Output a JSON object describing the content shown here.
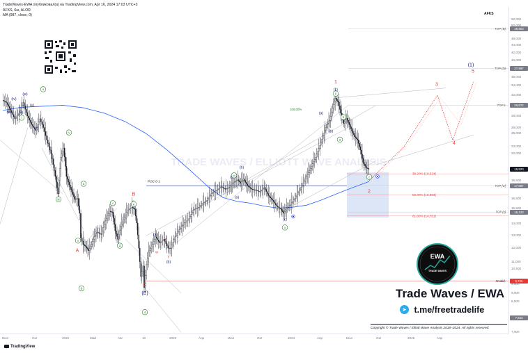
{
  "header": {
    "published": "TradeWaves-EWA опубликовал(а) на TradingView.com, Apr 16, 2024 17:03 UTC+3",
    "symbol_line": "AFKS, 6м, ALOR",
    "ma_line": "MA (987, close, 0)"
  },
  "symbol_tag": "AFKS",
  "currency": "RUB",
  "footer": {
    "logo_text": "TradingView"
  },
  "brand": {
    "title": "Trade Waves / EWA",
    "telegram": "t.me/freetradelife",
    "copyright": "Copyright © Trade Waves / Elliott Wave Analysis 2018–2024. All rights reserved.",
    "logo_text": "EWA",
    "logo_sub": "TRADE WAVES",
    "watermark": "TRADE WAVES / ELLIOTT WAVE ANALYSIS"
  },
  "colors": {
    "candles": "#131722",
    "ma": "#2962ff",
    "wave_red": "#e53935",
    "wave_green": "#2e7d32",
    "wave_navy": "#1a237e",
    "target_zone": "#d6e2f5",
    "invalid_line": "#e57373"
  },
  "chart_data": {
    "type": "candlestick",
    "ylim": [
      7000,
      52000
    ],
    "y_ticks": [
      {
        "label": "52,000",
        "value": 52000
      },
      {
        "label": "50,000",
        "value": 50000
      },
      {
        "label": "46,000",
        "value": 46000
      },
      {
        "label": "44,000",
        "value": 44000
      },
      {
        "label": "42,000",
        "value": 42000
      },
      {
        "label": "40,000",
        "value": 40000
      },
      {
        "label": "38,000",
        "value": 38000
      },
      {
        "label": "36,000",
        "value": 36000
      },
      {
        "label": "34,000",
        "value": 34000
      },
      {
        "label": "32,000",
        "value": 32000
      },
      {
        "label": "30,000",
        "value": 30000
      },
      {
        "label": "28,000",
        "value": 28000
      },
      {
        "label": "26,000",
        "value": 26000
      },
      {
        "label": "25,000",
        "value": 25000
      },
      {
        "label": "23,000",
        "value": 23000
      },
      {
        "label": "22,000",
        "value": 22000
      },
      {
        "label": "20,000",
        "value": 20000
      },
      {
        "label": "18,500",
        "value": 18500
      },
      {
        "label": "16,500",
        "value": 16500
      },
      {
        "label": "15,500",
        "value": 15500
      },
      {
        "label": "14,000",
        "value": 14000
      },
      {
        "label": "13,000",
        "value": 13000
      },
      {
        "label": "12,000",
        "value": 12000
      },
      {
        "label": "11,000",
        "value": 11000
      },
      {
        "label": "10,500",
        "value": 10500
      },
      {
        "label": "9,500",
        "value": 9500
      },
      {
        "label": "9,000",
        "value": 9000
      },
      {
        "label": "8,500",
        "value": 8500
      },
      {
        "label": "7,700",
        "value": 7700
      },
      {
        "label": "7,000",
        "value": 7000
      }
    ],
    "price_badges": [
      {
        "label": "48,963",
        "value": 48963,
        "color": "#787b86"
      },
      {
        "label": "37,987",
        "value": 37987,
        "color": "#787b86"
      },
      {
        "label": "29,972",
        "value": 29972,
        "color": "#787b86"
      },
      {
        "label": "19,920",
        "value": 19920,
        "color": "#131722"
      },
      {
        "label": "17,887",
        "value": 17887,
        "color": "#787b86"
      },
      {
        "label": "15,123",
        "value": 15123,
        "color": "#787b86"
      },
      {
        "label": "9,726",
        "value": 9726,
        "color": "#e53935"
      },
      {
        "label": "7,663",
        "value": 7663,
        "color": "#787b86"
      }
    ],
    "x_ticks": [
      {
        "label": "Июл",
        "x": 6
      },
      {
        "label": "Окт",
        "x": 49
      },
      {
        "label": "2022",
        "x": 92
      },
      {
        "label": "Май",
        "x": 132
      },
      {
        "label": "Авг",
        "x": 172
      },
      {
        "label": "10",
        "x": 207
      },
      {
        "label": "2023",
        "x": 246
      },
      {
        "label": "Апр",
        "x": 288
      },
      {
        "label": "Июл",
        "x": 330
      },
      {
        "label": "Окт",
        "x": 372
      },
      {
        "label": "2024",
        "x": 416
      },
      {
        "label": "Апр",
        "x": 458
      },
      {
        "label": "Июл",
        "x": 500
      },
      {
        "label": "Окт",
        "x": 543
      },
      {
        "label": "2025",
        "x": 588
      },
      {
        "label": "Апр",
        "x": 630
      }
    ],
    "price_path": [
      [
        4,
        31000
      ],
      [
        10,
        30500
      ],
      [
        16,
        29000
      ],
      [
        22,
        27500
      ],
      [
        28,
        28500
      ],
      [
        34,
        30500
      ],
      [
        40,
        28000
      ],
      [
        46,
        26500
      ],
      [
        52,
        25500
      ],
      [
        58,
        27500
      ],
      [
        63,
        26000
      ],
      [
        68,
        24000
      ],
      [
        74,
        22000
      ],
      [
        80,
        19000
      ],
      [
        84,
        17000
      ],
      [
        88,
        21500
      ],
      [
        92,
        22800
      ],
      [
        96,
        19000
      ],
      [
        100,
        18000
      ],
      [
        104,
        17200
      ],
      [
        108,
        16400
      ],
      [
        112,
        16500
      ],
      [
        115,
        15000
      ],
      [
        117,
        12800
      ],
      [
        120,
        12300
      ],
      [
        124,
        12100
      ],
      [
        128,
        11800
      ],
      [
        132,
        12300
      ],
      [
        136,
        12900
      ],
      [
        140,
        13300
      ],
      [
        146,
        13100
      ],
      [
        152,
        14300
      ],
      [
        158,
        15200
      ],
      [
        162,
        15100
      ],
      [
        166,
        13400
      ],
      [
        170,
        12700
      ],
      [
        174,
        13800
      ],
      [
        178,
        14400
      ],
      [
        184,
        15300
      ],
      [
        190,
        15600
      ],
      [
        194,
        15400
      ],
      [
        197,
        14100
      ],
      [
        200,
        12000
      ],
      [
        203,
        10000
      ],
      [
        206,
        10700
      ],
      [
        208,
        9300
      ],
      [
        211,
        10800
      ],
      [
        214,
        11700
      ],
      [
        218,
        12100
      ],
      [
        224,
        12900
      ],
      [
        230,
        12400
      ],
      [
        236,
        12700
      ],
      [
        242,
        12000
      ],
      [
        246,
        12000
      ],
      [
        252,
        12900
      ],
      [
        258,
        13500
      ],
      [
        264,
        14000
      ],
      [
        272,
        14500
      ],
      [
        278,
        15300
      ],
      [
        286,
        15600
      ],
      [
        292,
        16000
      ],
      [
        298,
        16300
      ],
      [
        304,
        17000
      ],
      [
        312,
        17400
      ],
      [
        318,
        17800
      ],
      [
        324,
        17500
      ],
      [
        330,
        17700
      ],
      [
        336,
        18300
      ],
      [
        342,
        18600
      ],
      [
        346,
        18200
      ],
      [
        350,
        18700
      ],
      [
        356,
        17900
      ],
      [
        362,
        17500
      ],
      [
        368,
        17400
      ],
      [
        374,
        17200
      ],
      [
        380,
        17700
      ],
      [
        386,
        16800
      ],
      [
        392,
        16300
      ],
      [
        398,
        15700
      ],
      [
        404,
        15400
      ],
      [
        408,
        15000
      ],
      [
        412,
        15500
      ],
      [
        418,
        15900
      ],
      [
        424,
        16500
      ],
      [
        430,
        17300
      ],
      [
        436,
        18200
      ],
      [
        442,
        19200
      ],
      [
        448,
        20300
      ],
      [
        454,
        21500
      ],
      [
        460,
        23200
      ],
      [
        466,
        25100
      ],
      [
        470,
        26500
      ],
      [
        474,
        27200
      ],
      [
        478,
        29500
      ],
      [
        482,
        31400
      ],
      [
        486,
        30600
      ],
      [
        490,
        28500
      ],
      [
        494,
        26700
      ],
      [
        498,
        27600
      ],
      [
        502,
        26500
      ],
      [
        506,
        25400
      ],
      [
        510,
        24500
      ],
      [
        514,
        24000
      ],
      [
        518,
        22500
      ],
      [
        522,
        20800
      ],
      [
        526,
        20100
      ],
      [
        530,
        19900
      ]
    ],
    "ma_path": [
      [
        4,
        29000
      ],
      [
        30,
        29600
      ],
      [
        60,
        29800
      ],
      [
        90,
        30000
      ],
      [
        120,
        29500
      ],
      [
        150,
        28500
      ],
      [
        180,
        27000
      ],
      [
        210,
        25000
      ],
      [
        240,
        22500
      ],
      [
        270,
        20000
      ],
      [
        300,
        17700
      ],
      [
        320,
        16600
      ],
      [
        340,
        16200
      ],
      [
        360,
        16000
      ],
      [
        380,
        15700
      ],
      [
        400,
        15500
      ],
      [
        420,
        15600
      ],
      [
        440,
        15800
      ],
      [
        460,
        16300
      ],
      [
        480,
        16900
      ],
      [
        500,
        17500
      ],
      [
        520,
        18100
      ],
      [
        530,
        18400
      ]
    ],
    "projection_path": [
      [
        530,
        18500
      ],
      [
        580,
        23000
      ],
      [
        628,
        32000
      ],
      [
        650,
        24000
      ],
      [
        680,
        35000
      ]
    ],
    "target_zone": {
      "x0": 498,
      "x1": 558,
      "y_top": 19500,
      "y_bottom": 14600
    },
    "fib_levels": [
      {
        "label": "38.20% (19,324)",
        "value": 19324,
        "color": "#e53935"
      },
      {
        "label": "50.00% (16,883)",
        "value": 16883,
        "color": "#e53935"
      },
      {
        "label": "61.80% (14,751)",
        "value": 14751,
        "color": "#e53935"
      }
    ],
    "top_levels": [
      {
        "label": "TOP (B)",
        "value": 48963
      },
      {
        "label": "TOP (D)",
        "value": 37987
      },
      {
        "label": "TOP 1",
        "value": 29972
      },
      {
        "label": "TOP [w]",
        "value": 17887
      },
      {
        "label": "TOP [x]",
        "value": 15123
      }
    ],
    "annotations": {
      "poc": {
        "label": "POC 0-1",
        "value": 17900
      },
      "fib_100": {
        "label": "100.00%",
        "value": 29000
      },
      "invalid": {
        "label": "Invalid.",
        "value": 9726
      }
    },
    "wave_labels": [
      {
        "text": "(iv)",
        "x": 20,
        "y": 31000,
        "color": "#1a237e"
      },
      {
        "text": "(w)",
        "x": 36,
        "y": 32000,
        "color": "#1a237e"
      },
      {
        "text": "(iii)",
        "x": 13,
        "y": 28500,
        "color": "#1a237e"
      },
      {
        "text": "(v)",
        "x": 30,
        "y": 28400,
        "color": "#1a237e"
      },
      {
        "text": "(y)",
        "x": 46,
        "y": 29800,
        "color": "#1a237e"
      },
      {
        "text": "(x)",
        "x": 52,
        "y": 25800,
        "color": "#1a237e"
      },
      {
        "text": "(c)",
        "x": 482,
        "y": 32900,
        "color": "#1a237e"
      },
      {
        "text": "(a)",
        "x": 461,
        "y": 28300,
        "color": "#1a237e"
      },
      {
        "text": "(b)",
        "x": 475,
        "y": 25200,
        "color": "#1a237e"
      },
      {
        "text": "(b)",
        "x": 347,
        "y": 20000,
        "color": "#1a237e"
      },
      {
        "text": "(c)",
        "x": 333,
        "y": 18800,
        "color": "#1a237e"
      },
      {
        "text": "(a)",
        "x": 340,
        "y": 16500,
        "color": "#1a237e"
      },
      {
        "text": "(c)",
        "x": 409,
        "y": 14300,
        "color": "#1a237e"
      },
      {
        "text": "(a)",
        "x": 223,
        "y": 13000,
        "color": "#1a237e"
      },
      {
        "text": "(b)",
        "x": 242,
        "y": 10900,
        "color": "#1a237e"
      },
      {
        "text": "(E)",
        "x": 208,
        "y": 8900,
        "color": "#1a237e"
      },
      {
        "text": "(1)",
        "x": 676,
        "y": 38500,
        "color": "#1a237e"
      },
      {
        "text": "i",
        "x": 31,
        "y": 27500,
        "color": "#2e7d32",
        "circle": true
      },
      {
        "text": "ii",
        "x": 62,
        "y": 33000,
        "color": "#2e7d32",
        "circle": true
      },
      {
        "text": "iv",
        "x": 99,
        "y": 25000,
        "color": "#2e7d32",
        "circle": true
      },
      {
        "text": "iii",
        "x": 84,
        "y": 16300,
        "color": "#2e7d32",
        "circle": true
      },
      {
        "text": "a",
        "x": 120,
        "y": 18000,
        "color": "#2e7d32",
        "circle": true
      },
      {
        "text": "c",
        "x": 162,
        "y": 15900,
        "color": "#2e7d32",
        "circle": true
      },
      {
        "text": "e",
        "x": 192,
        "y": 15800,
        "color": "#2e7d32",
        "circle": true
      },
      {
        "text": "v",
        "x": 112,
        "y": 12500,
        "color": "#2e7d32",
        "circle": true
      },
      {
        "text": "d",
        "x": 172,
        "y": 12100,
        "color": "#2e7d32",
        "circle": true
      },
      {
        "text": "b",
        "x": 117,
        "y": 9200,
        "color": "#2e7d32",
        "circle": true
      },
      {
        "text": "4",
        "x": 208,
        "y": 7900,
        "color": "#2e7d32",
        "circle": true
      },
      {
        "text": "w",
        "x": 336,
        "y": 19000,
        "color": "#2e7d32",
        "circle": true
      },
      {
        "text": "x",
        "x": 409,
        "y": 13600,
        "color": "#2e7d32",
        "circle": true
      },
      {
        "text": "y",
        "x": 482,
        "y": 32100,
        "color": "#2e7d32",
        "circle": true
      },
      {
        "text": "b",
        "x": 493,
        "y": 27600,
        "color": "#2e7d32",
        "circle": true
      },
      {
        "text": "a",
        "x": 488,
        "y": 23900,
        "color": "#2e7d32",
        "circle": true
      },
      {
        "text": "c",
        "x": 530,
        "y": 18800,
        "color": "#2e7d32",
        "circle": true
      },
      {
        "text": "B",
        "x": 192,
        "y": 16800,
        "color": "#e53935"
      },
      {
        "text": "A",
        "x": 111,
        "y": 11700,
        "color": "#e53935"
      },
      {
        "text": "C",
        "x": 208,
        "y": 9400,
        "color": "#e53935"
      },
      {
        "text": "x",
        "x": 238,
        "y": 12600,
        "color": "#e53935"
      },
      {
        "text": "w",
        "x": 225,
        "y": 11600,
        "color": "#e53935"
      },
      {
        "text": "y",
        "x": 242,
        "y": 11300,
        "color": "#e53935"
      },
      {
        "text": "1",
        "x": 482,
        "y": 34500,
        "color": "#e53935"
      },
      {
        "text": "2",
        "x": 530,
        "y": 17100,
        "color": "#e53935"
      },
      {
        "text": "3",
        "x": 627,
        "y": 34000,
        "color": "#e53935"
      },
      {
        "text": "4",
        "x": 652,
        "y": 23300,
        "color": "#e53935"
      },
      {
        "text": "5",
        "x": 679,
        "y": 37000,
        "color": "#e53935"
      }
    ]
  }
}
